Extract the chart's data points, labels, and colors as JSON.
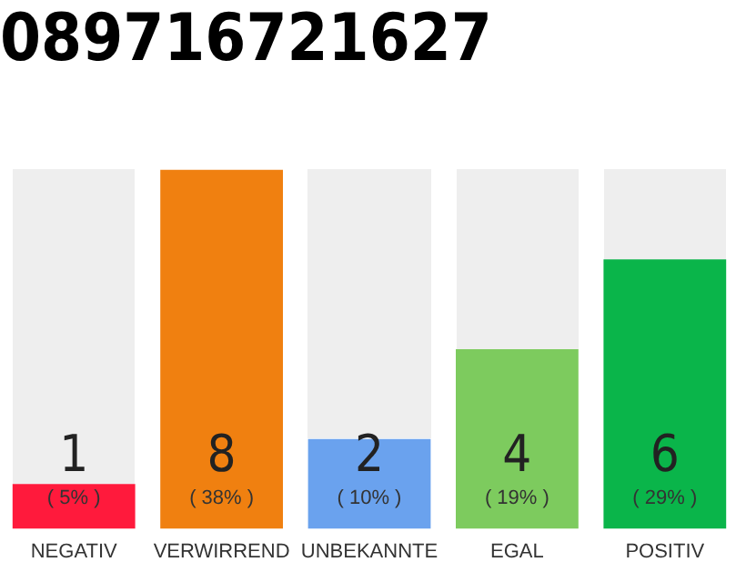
{
  "chart_data": {
    "type": "bar",
    "title": "089716721627",
    "categories": [
      "NEGATIV",
      "VERWIRREND",
      "UNBEKANNTE",
      "EGAL",
      "POSITIV"
    ],
    "values": [
      1,
      8,
      2,
      4,
      6
    ],
    "colors": [
      "#ff1a3c",
      "#f08010",
      "#6aa2ee",
      "#7dcb5e",
      "#0ab54a"
    ],
    "tick_labels": "x",
    "legend": false,
    "data_labels": true,
    "annotations": [
      "( 5% )",
      "( 38% )",
      "( 10% )",
      "( 19% )",
      "( 29% )"
    ]
  }
}
